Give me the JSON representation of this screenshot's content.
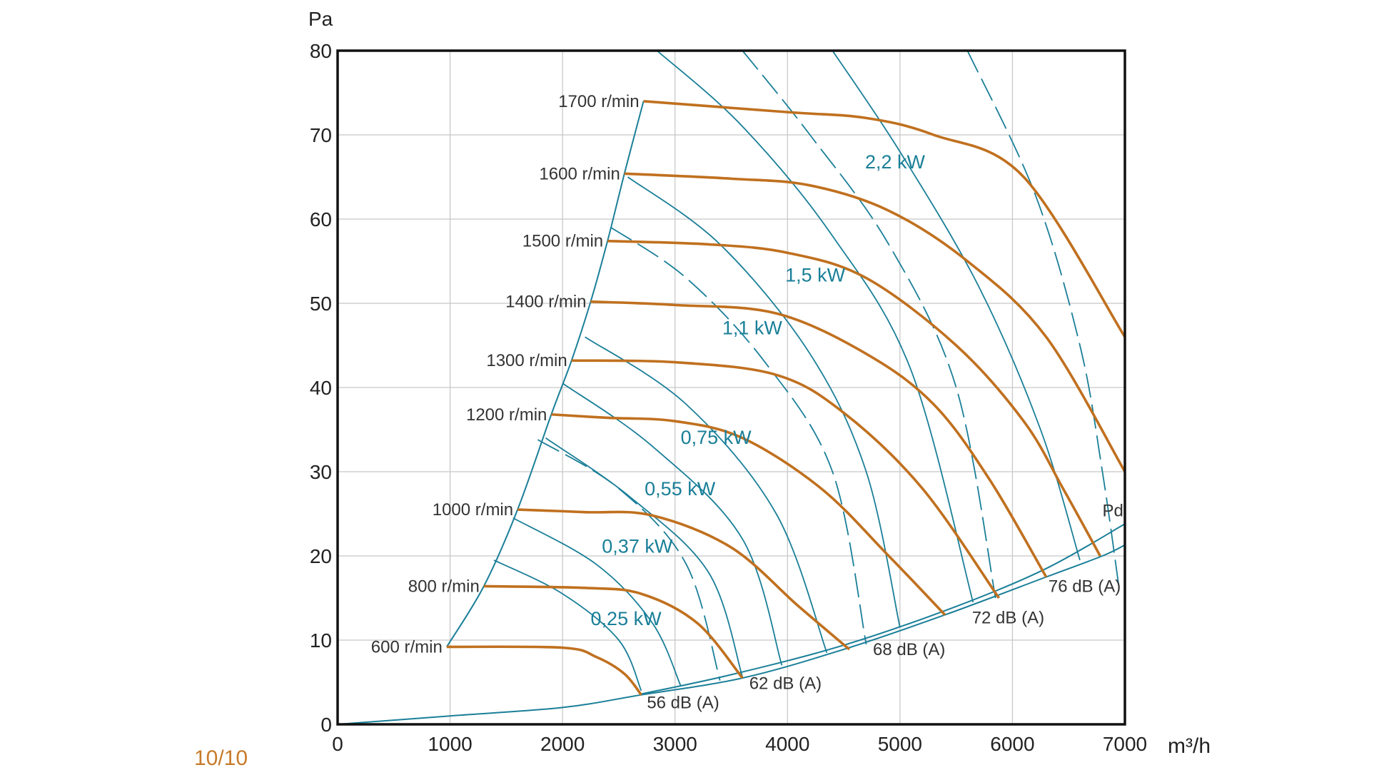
{
  "page_number": "10/10",
  "chart_data": {
    "type": "line",
    "title": "",
    "xlabel": "m³/h",
    "ylabel": "Pa",
    "xlim": [
      0,
      7000
    ],
    "ylim": [
      0,
      80
    ],
    "grid": true,
    "x_ticks": [
      "0",
      "1000",
      "2000",
      "3000",
      "4000",
      "5000",
      "6000",
      "7000"
    ],
    "y_ticks": [
      "0",
      "10",
      "20",
      "30",
      "40",
      "50",
      "60",
      "70",
      "80"
    ],
    "colors": {
      "speed": "#c0701f",
      "power": "#1a7f98",
      "axis": "#111111",
      "grid": "#c8c8c8"
    },
    "speed_curves": [
      {
        "name": "600 r/min",
        "points": [
          [
            970,
            9.2
          ],
          [
            2000,
            9.1
          ],
          [
            2300,
            8
          ],
          [
            2550,
            6
          ],
          [
            2700,
            3.5
          ]
        ]
      },
      {
        "name": "800 r/min",
        "points": [
          [
            1300,
            16.4
          ],
          [
            2200,
            16.2
          ],
          [
            2700,
            15.5
          ],
          [
            3200,
            12
          ],
          [
            3600,
            5.5
          ]
        ]
      },
      {
        "name": "1000 r/min",
        "points": [
          [
            1600,
            25.5
          ],
          [
            2200,
            25.2
          ],
          [
            2800,
            24.8
          ],
          [
            3500,
            21
          ],
          [
            4100,
            14
          ],
          [
            4550,
            8.9
          ]
        ]
      },
      {
        "name": "1200 r/min",
        "points": [
          [
            1900,
            36.8
          ],
          [
            2400,
            36.4
          ],
          [
            3000,
            36
          ],
          [
            3600,
            34
          ],
          [
            4300,
            28
          ],
          [
            4900,
            20
          ],
          [
            5400,
            13
          ]
        ]
      },
      {
        "name": "1300 r/min",
        "points": [
          [
            2080,
            43.2
          ],
          [
            3000,
            43
          ],
          [
            3900,
            41.5
          ],
          [
            4500,
            37
          ],
          [
            5200,
            28
          ],
          [
            5880,
            15
          ]
        ]
      },
      {
        "name": "1400 r/min",
        "points": [
          [
            2250,
            50.2
          ],
          [
            3000,
            49.8
          ],
          [
            3900,
            48.8
          ],
          [
            4700,
            44
          ],
          [
            5300,
            38
          ],
          [
            5800,
            29
          ],
          [
            6300,
            17.5
          ]
        ]
      },
      {
        "name": "1500 r/min",
        "points": [
          [
            2400,
            57.4
          ],
          [
            3300,
            57
          ],
          [
            4000,
            56
          ],
          [
            4700,
            53
          ],
          [
            5500,
            45
          ],
          [
            6100,
            36
          ],
          [
            6450,
            28
          ],
          [
            6780,
            20
          ]
        ]
      },
      {
        "name": "1600 r/min",
        "points": [
          [
            2550,
            65.4
          ],
          [
            3500,
            64.8
          ],
          [
            4200,
            64
          ],
          [
            4900,
            61
          ],
          [
            5600,
            55
          ],
          [
            6300,
            46
          ],
          [
            7000,
            30
          ]
        ]
      },
      {
        "name": "1700 r/min",
        "points": [
          [
            2720,
            74
          ],
          [
            4000,
            72.7
          ],
          [
            4700,
            72
          ],
          [
            5300,
            70
          ],
          [
            6100,
            65
          ],
          [
            7000,
            46
          ]
        ]
      }
    ],
    "boundary_curve": [
      [
        970,
        9.2
      ],
      [
        1300,
        16.4
      ],
      [
        1600,
        25.5
      ],
      [
        1900,
        36.8
      ],
      [
        2080,
        43.2
      ],
      [
        2250,
        50.2
      ],
      [
        2400,
        57.4
      ],
      [
        2550,
        65.4
      ],
      [
        2720,
        74
      ]
    ],
    "pd_curves": [
      {
        "name": "Pd",
        "points": [
          [
            0,
            0
          ],
          [
            1000,
            1
          ],
          [
            2000,
            2
          ],
          [
            2700,
            3.5
          ],
          [
            3600,
            5.5
          ],
          [
            4500,
            8.9
          ],
          [
            5400,
            13
          ],
          [
            6300,
            17.5
          ],
          [
            6800,
            20
          ],
          [
            7000,
            21.3
          ]
        ]
      },
      {
        "points": [
          [
            2700,
            3.6
          ],
          [
            3500,
            5.9
          ],
          [
            4500,
            9.4
          ],
          [
            5500,
            14
          ],
          [
            6300,
            18.5
          ],
          [
            7000,
            23.8
          ]
        ]
      }
    ],
    "power_curves": [
      {
        "dashed": false,
        "points": [
          [
            1390,
            19.5
          ],
          [
            2000,
            15.5
          ],
          [
            2500,
            10
          ],
          [
            2700,
            4
          ]
        ]
      },
      {
        "dashed": false,
        "points": [
          [
            1560,
            24.5
          ],
          [
            2300,
            19
          ],
          [
            2800,
            12
          ],
          [
            3050,
            4.6
          ]
        ]
      },
      {
        "dashed": true,
        "points": [
          [
            1780,
            33.8
          ],
          [
            2500,
            28
          ],
          [
            3100,
            19
          ],
          [
            3400,
            5.2
          ]
        ]
      },
      {
        "dashed": false,
        "points": [
          [
            1850,
            34
          ],
          [
            2600,
            27
          ],
          [
            3300,
            18
          ],
          [
            3600,
            5.6
          ]
        ]
      },
      {
        "dashed": false,
        "points": [
          [
            2000,
            40.5
          ],
          [
            2800,
            33
          ],
          [
            3600,
            22
          ],
          [
            3950,
            7
          ]
        ]
      },
      {
        "dashed": false,
        "points": [
          [
            2200,
            46
          ],
          [
            3100,
            38
          ],
          [
            3900,
            25
          ],
          [
            4350,
            8.5
          ]
        ]
      },
      {
        "dashed": true,
        "points": [
          [
            2430,
            59
          ],
          [
            3100,
            53
          ],
          [
            3800,
            43
          ],
          [
            4400,
            30
          ],
          [
            4700,
            9.5
          ]
        ]
      },
      {
        "dashed": false,
        "points": [
          [
            2580,
            65
          ],
          [
            3400,
            57
          ],
          [
            4200,
            44
          ],
          [
            4700,
            30
          ],
          [
            5000,
            11.5
          ]
        ]
      },
      {
        "dashed": false,
        "points": [
          [
            2840,
            80
          ],
          [
            3600,
            71
          ],
          [
            4400,
            58
          ],
          [
            5100,
            42
          ],
          [
            5650,
            14.5
          ]
        ]
      },
      {
        "dashed": true,
        "points": [
          [
            3600,
            80
          ],
          [
            4200,
            70
          ],
          [
            4900,
            57
          ],
          [
            5500,
            40
          ],
          [
            5850,
            15
          ]
        ]
      },
      {
        "dashed": false,
        "points": [
          [
            4400,
            80
          ],
          [
            5000,
            68
          ],
          [
            5700,
            52
          ],
          [
            6250,
            35
          ],
          [
            6600,
            19.5
          ]
        ]
      },
      {
        "dashed": true,
        "points": [
          [
            5600,
            80
          ],
          [
            6200,
            63
          ],
          [
            6600,
            45
          ],
          [
            6800,
            30
          ],
          [
            6950,
            16
          ]
        ]
      }
    ],
    "power_labels": [
      {
        "text": "0,25 kW",
        "at": [
          2250,
          11.8
        ]
      },
      {
        "text": "0,37 kW",
        "at": [
          2350,
          20.4
        ]
      },
      {
        "text": "0,55 kW",
        "at": [
          2730,
          27.2
        ]
      },
      {
        "text": "0,75 kW",
        "at": [
          3050,
          33.3
        ]
      },
      {
        "text": "1,1 kW",
        "at": [
          3420,
          46.3
        ]
      },
      {
        "text": "1,5 kW",
        "at": [
          3980,
          52.6
        ]
      },
      {
        "text": "2,2 kW",
        "at": [
          4690,
          66
        ]
      }
    ],
    "db_labels": [
      {
        "text": "56 dB (A)",
        "at": [
          2750,
          1.9
        ]
      },
      {
        "text": "62 dB (A)",
        "at": [
          3660,
          4.2
        ]
      },
      {
        "text": "68 dB (A)",
        "at": [
          4760,
          8.2
        ]
      },
      {
        "text": "72 dB (A)",
        "at": [
          5640,
          12
        ]
      },
      {
        "text": "76 dB (A)",
        "at": [
          6320,
          15.7
        ]
      }
    ],
    "pd_label": {
      "text": "Pd",
      "at": [
        6800,
        24.7
      ]
    }
  }
}
